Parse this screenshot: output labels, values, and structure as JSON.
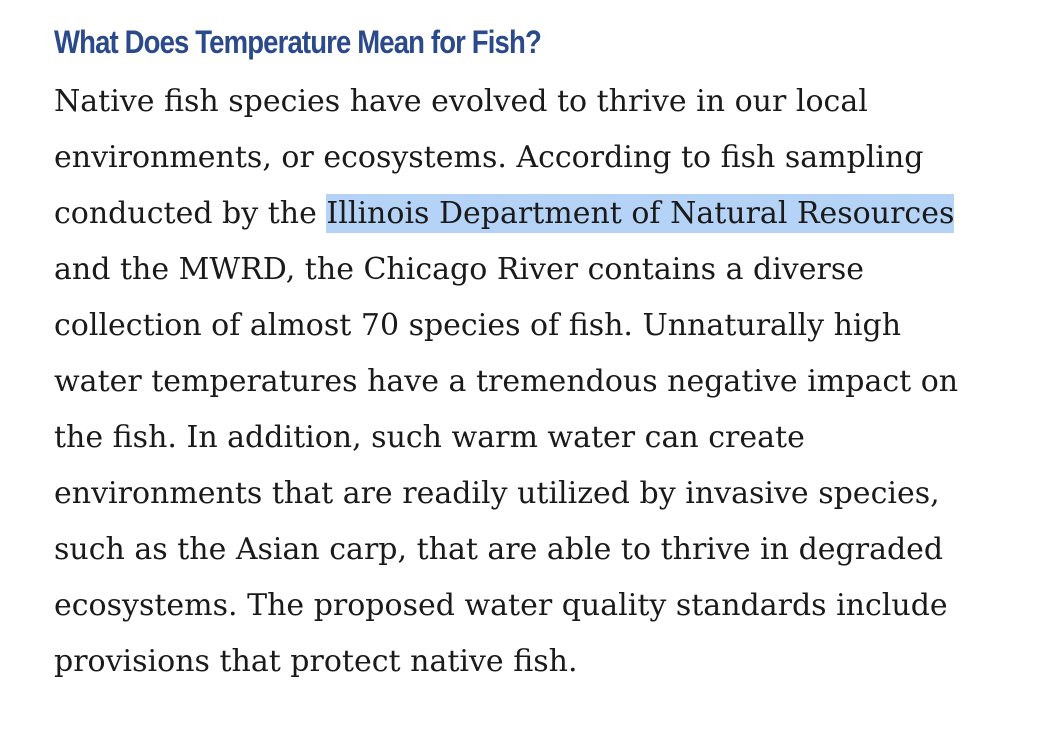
{
  "article": {
    "heading": "What Does Temperature Mean for Fish?",
    "lines": [
      "Native fish species have evolved to thrive in our local",
      "environments, or ecosystems. According to fish sampling",
      "conducted by the ",
      "and the MWRD, the Chicago River contains a diverse",
      "collection of almost 70 species of fish. Unnaturally high",
      "water temperatures have a tremendous negative impact on",
      "the fish. In addition, such warm water can create",
      "environments that are readily utilized by invasive species,",
      "such as the Asian carp, that are able to thrive in degraded",
      "ecosystems. The proposed water quality standards include",
      "provisions that protect native fish."
    ],
    "selected_text": "Illinois Department of Natural Resources",
    "selection_color": "#b5d3f7",
    "heading_color": "#2b4a8b"
  }
}
